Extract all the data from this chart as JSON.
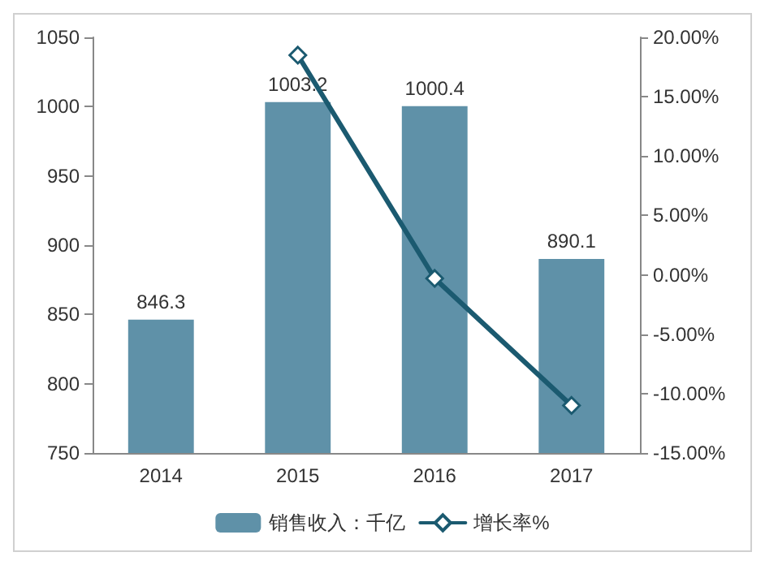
{
  "chart_data": {
    "type": "bar",
    "categories": [
      "2014",
      "2015",
      "2016",
      "2017"
    ],
    "series": [
      {
        "name": "销售收入：千亿",
        "color": "#5f91a8",
        "values": [
          846.3,
          1003.2,
          1000.4,
          890.1
        ],
        "value_labels": [
          "846.3",
          "1003.2",
          "1000.4",
          "890.1"
        ]
      },
      {
        "name": "增长率%",
        "type": "line",
        "axis": "y2",
        "color": "#1b5a70",
        "marker": "diamond",
        "values": [
          null,
          18.5,
          -0.3,
          -11.0
        ]
      }
    ],
    "ylim": [
      750,
      1050
    ],
    "yticks": [
      750,
      800,
      850,
      900,
      950,
      1000,
      1050
    ],
    "y2lim": [
      -15,
      20
    ],
    "y2ticks": [
      {
        "value": -15,
        "label": "-15.00%"
      },
      {
        "value": -10,
        "label": "-10.00%"
      },
      {
        "value": -5,
        "label": "-5.00%"
      },
      {
        "value": 0,
        "label": "0.00%"
      },
      {
        "value": 5,
        "label": "5.00%"
      },
      {
        "value": 10,
        "label": "10.00%"
      },
      {
        "value": 15,
        "label": "15.00%"
      },
      {
        "value": 20,
        "label": "20.00%"
      }
    ],
    "grid": false,
    "legend": "bottom"
  }
}
